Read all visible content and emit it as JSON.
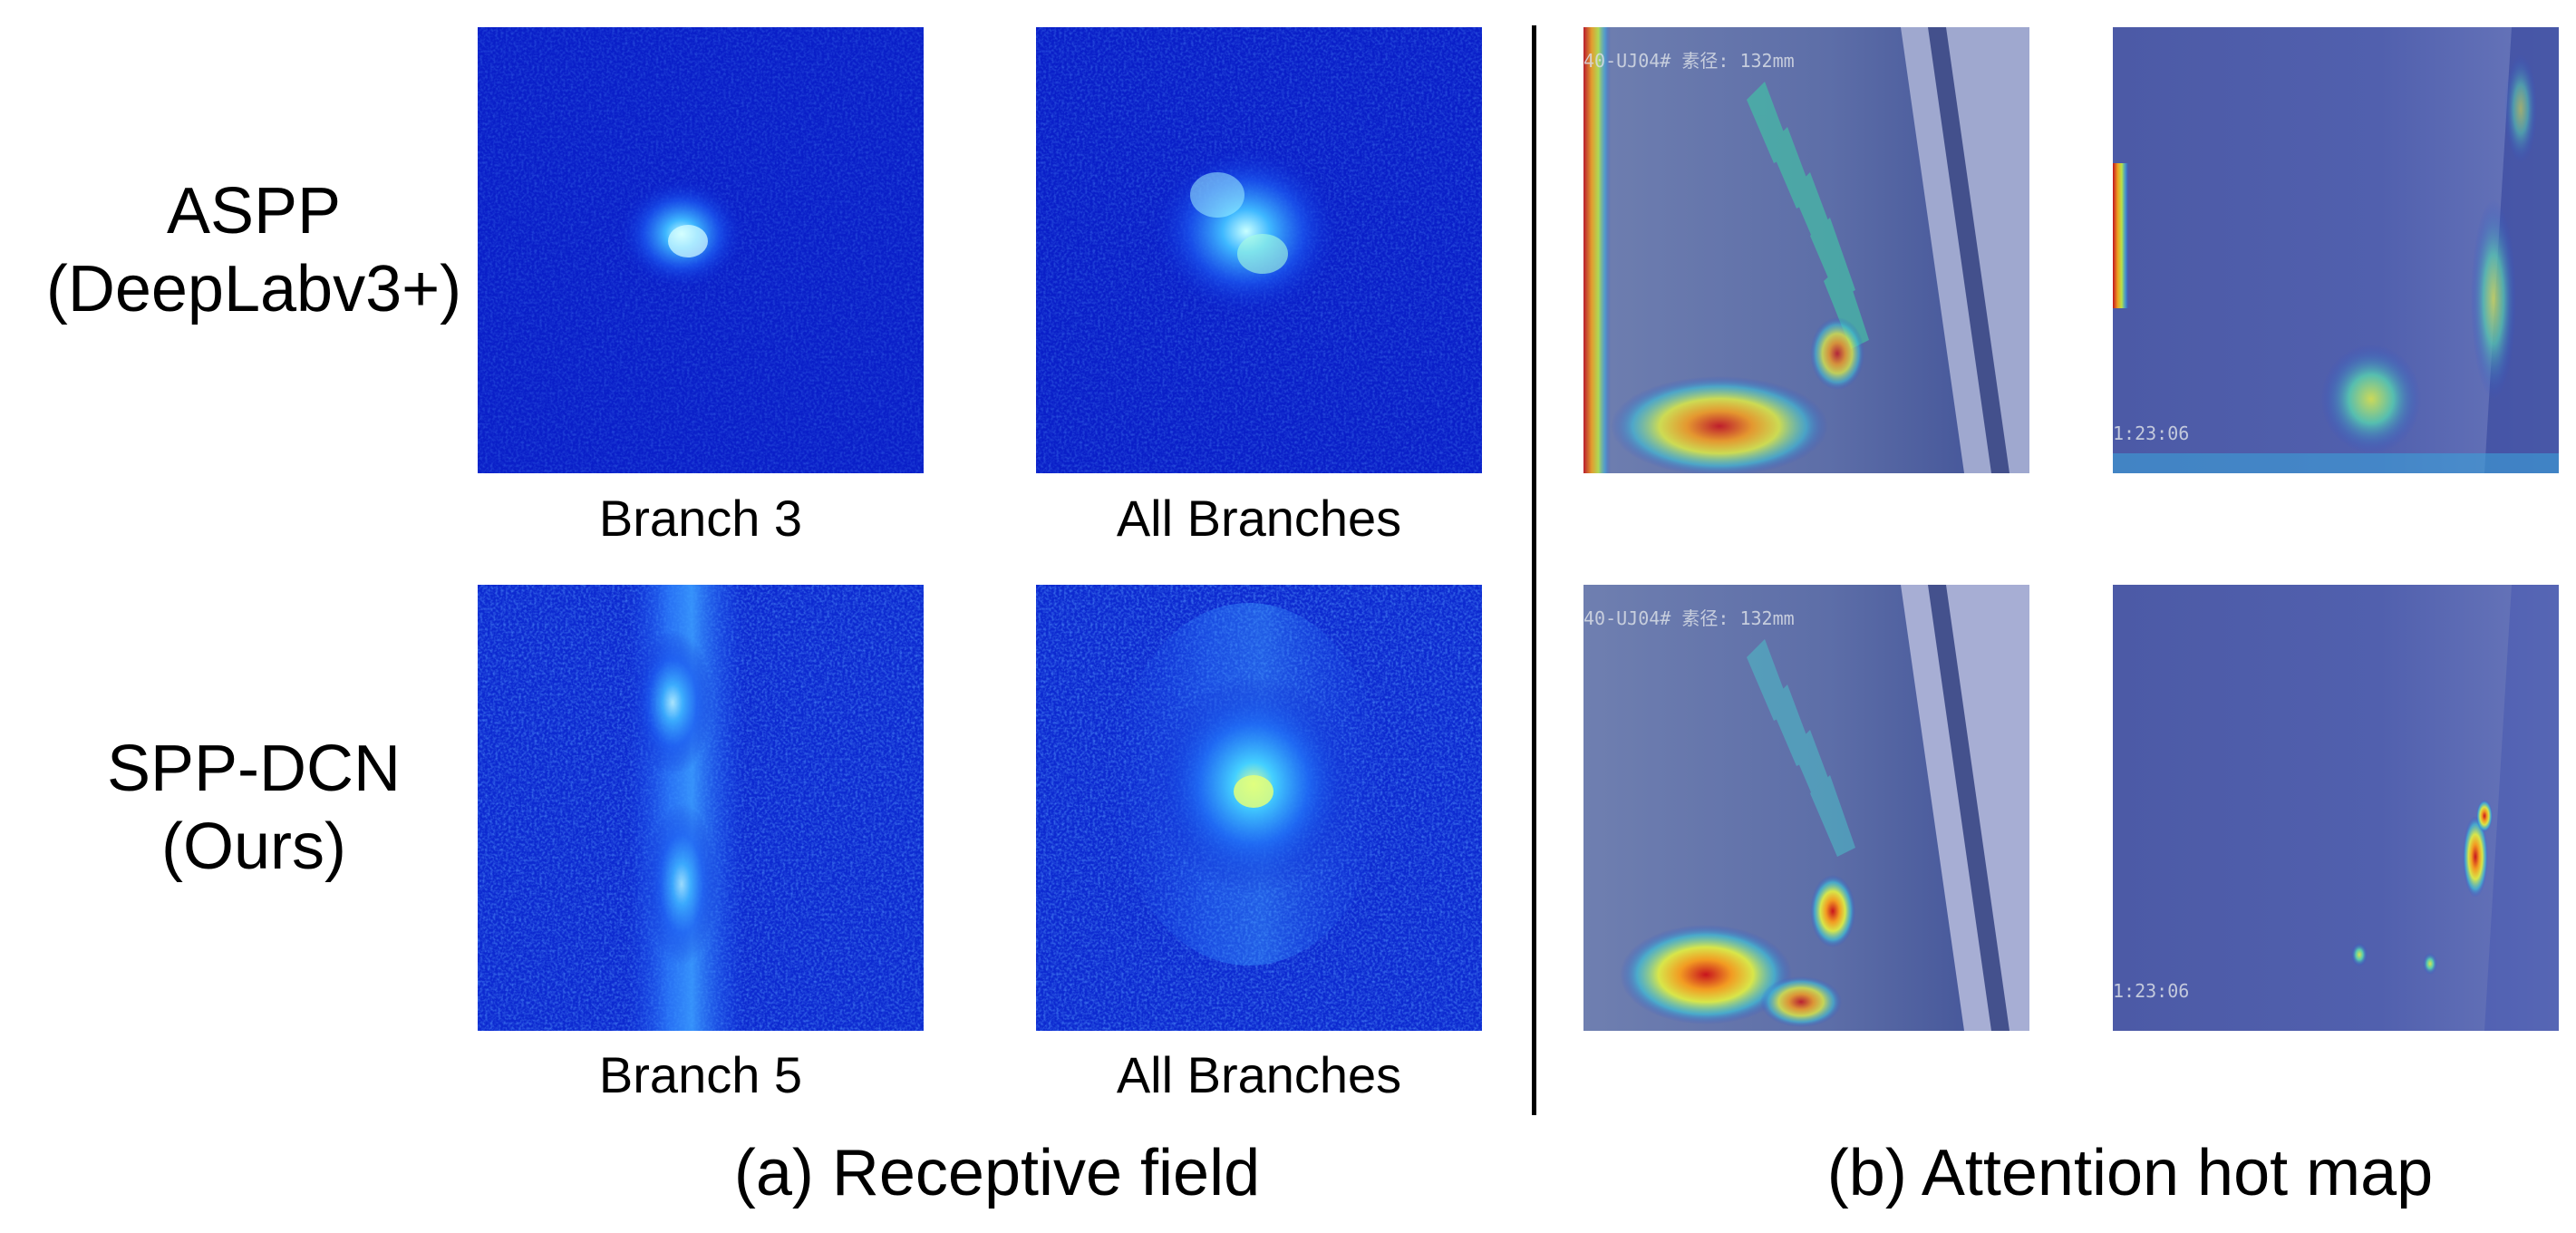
{
  "rows": [
    {
      "name": "ASPP",
      "sub": "(DeepLabv3+)"
    },
    {
      "name": "SPP-DCN",
      "sub": "(Ours)"
    }
  ],
  "captions": {
    "r1_left": "Branch 3",
    "r1_right": "All Branches",
    "r2_left": "Branch 5",
    "r2_right": "All Branches"
  },
  "sections": {
    "a": "(a)  Receptive field",
    "b": "(b)  Attention hot map"
  },
  "overlay_text": {
    "header": "40-UJ04# 素径: 132mm",
    "time": "1:23:06"
  }
}
